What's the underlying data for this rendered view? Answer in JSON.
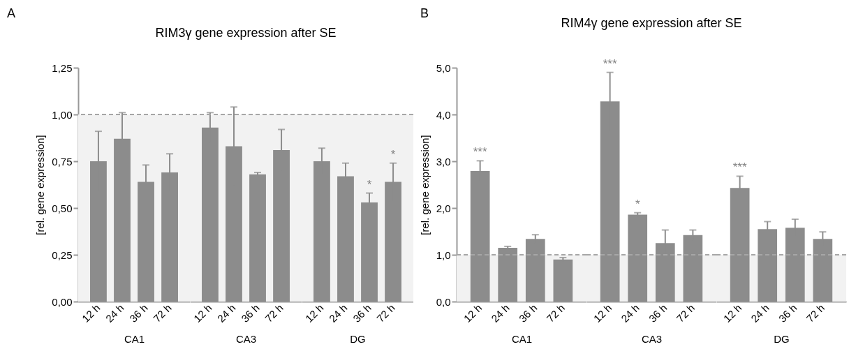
{
  "chart_data": [
    {
      "type": "bar",
      "ylabel": "[rel. gene expression]",
      "xlabel": "CA1",
      "categories": [
        "12 h",
        "24 h",
        "36 h",
        "72 h"
      ],
      "values": [
        0.75,
        0.87,
        0.64,
        0.69
      ],
      "errors": [
        0.16,
        0.14,
        0.09,
        0.1
      ],
      "color": "#8c8c8c",
      "ylim": [
        0,
        1.25
      ],
      "yticks": [
        {
          "value": 0,
          "label": "0,00"
        },
        {
          "value": 0.25,
          "label": "0,25"
        },
        {
          "value": 0.5,
          "label": "0,50"
        },
        {
          "value": 0.75,
          "label": "0,75"
        },
        {
          "value": 1,
          "label": "1,00"
        },
        {
          "value": 1.25,
          "label": "1,25"
        }
      ],
      "ref_lines": [
        {
          "axis": "y",
          "value": 1,
          "color": "#a6a6a6",
          "line_style": "dashed"
        }
      ],
      "bands": [
        {
          "axis": "y",
          "from": 0,
          "to": 1,
          "color": "#f2f2f2"
        }
      ],
      "annotations": [
        "A"
      ]
    },
    {
      "type": "bar",
      "title": "RIM3γ gene expression after SE",
      "xlabel": "CA3",
      "categories": [
        "12 h",
        "24 h",
        "36 h",
        "72 h"
      ],
      "values": [
        0.93,
        0.83,
        0.68,
        0.81
      ],
      "errors": [
        0.08,
        0.21,
        0.01,
        0.11
      ],
      "color": "#8c8c8c",
      "ylim": [
        0,
        1.25
      ],
      "tick_labels": "x",
      "ref_lines": [
        {
          "axis": "y",
          "value": 1,
          "color": "#a6a6a6",
          "line_style": "dashed"
        }
      ],
      "bands": [
        {
          "axis": "y",
          "from": 0,
          "to": 1,
          "color": "#f2f2f2"
        }
      ]
    },
    {
      "type": "bar",
      "xlabel": "DG",
      "categories": [
        "12 h",
        "24 h",
        "36 h",
        "72 h"
      ],
      "values": [
        0.75,
        0.67,
        0.53,
        0.64
      ],
      "errors": [
        0.07,
        0.07,
        0.05,
        0.1
      ],
      "color": "#8c8c8c",
      "ylim": [
        0,
        1.25
      ],
      "tick_labels": "x",
      "ref_lines": [
        {
          "axis": "y",
          "value": 1,
          "color": "#a6a6a6",
          "line_style": "dashed"
        }
      ],
      "bands": [
        {
          "axis": "y",
          "from": 0,
          "to": 1,
          "color": "#f2f2f2"
        }
      ],
      "annotations": [
        {
          "text": "*",
          "x": "36 h",
          "y": 0.53
        },
        {
          "text": "*",
          "x": "72 h",
          "y": 0.64
        }
      ]
    },
    {
      "type": "bar",
      "ylabel": "[rel. gene expression]",
      "xlabel": "CA1",
      "categories": [
        "12 h",
        "24 h",
        "36 h",
        "72 h"
      ],
      "values": [
        2.79,
        1.15,
        1.34,
        0.9
      ],
      "errors": [
        0.22,
        0.03,
        0.09,
        0.04
      ],
      "color": "#8c8c8c",
      "ylim": [
        0,
        5
      ],
      "yticks": [
        {
          "value": 0,
          "label": "0,0"
        },
        {
          "value": 1,
          "label": "1,0"
        },
        {
          "value": 2,
          "label": "2,0"
        },
        {
          "value": 3,
          "label": "3,0"
        },
        {
          "value": 4,
          "label": "4,0"
        },
        {
          "value": 5,
          "label": "5,0"
        }
      ],
      "ref_lines": [
        {
          "axis": "y",
          "value": 1,
          "color": "#a6a6a6",
          "line_style": "dashed"
        }
      ],
      "bands": [
        {
          "axis": "y",
          "from": 0,
          "to": 1,
          "color": "#f2f2f2"
        }
      ],
      "annotations": [
        "B",
        {
          "text": "***",
          "x": "12 h",
          "y": 2.79
        }
      ]
    },
    {
      "type": "bar",
      "title": "RIM4γ gene expression after SE",
      "xlabel": "CA3",
      "categories": [
        "12 h",
        "24 h",
        "36 h",
        "72 h"
      ],
      "values": [
        4.28,
        1.86,
        1.25,
        1.42
      ],
      "errors": [
        0.62,
        0.04,
        0.28,
        0.11
      ],
      "color": "#8c8c8c",
      "ylim": [
        0,
        5
      ],
      "tick_labels": "x",
      "ref_lines": [
        {
          "axis": "y",
          "value": 1,
          "color": "#a6a6a6",
          "line_style": "dashed"
        }
      ],
      "bands": [
        {
          "axis": "y",
          "from": 0,
          "to": 1,
          "color": "#f2f2f2"
        }
      ],
      "annotations": [
        {
          "text": "***",
          "x": "12 h",
          "y": 4.28
        },
        {
          "text": "*",
          "x": "24 h",
          "y": 1.86
        }
      ]
    },
    {
      "type": "bar",
      "xlabel": "DG",
      "categories": [
        "12 h",
        "24 h",
        "36 h",
        "72 h"
      ],
      "values": [
        2.43,
        1.55,
        1.58,
        1.34
      ],
      "errors": [
        0.25,
        0.16,
        0.18,
        0.15
      ],
      "color": "#8c8c8c",
      "ylim": [
        0,
        5
      ],
      "tick_labels": "x",
      "ref_lines": [
        {
          "axis": "y",
          "value": 1,
          "color": "#a6a6a6",
          "line_style": "dashed"
        }
      ],
      "bands": [
        {
          "axis": "y",
          "from": 0,
          "to": 1,
          "color": "#f2f2f2"
        }
      ],
      "annotations": [
        {
          "text": "***",
          "x": "12 h",
          "y": 2.43
        }
      ]
    }
  ]
}
